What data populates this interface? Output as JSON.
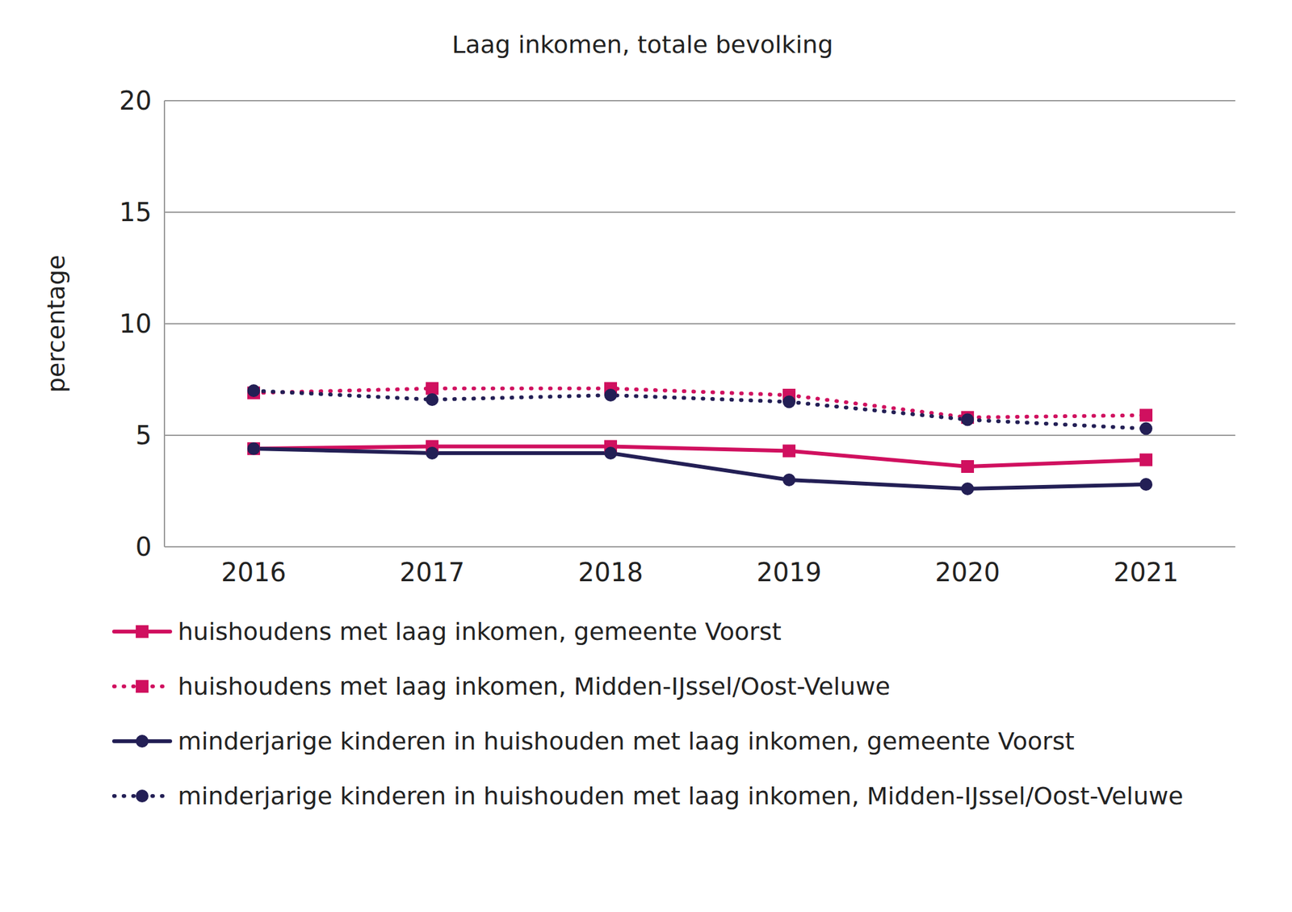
{
  "chart_data": {
    "type": "line",
    "title": "Laag inkomen, totale bevolking",
    "y_label": "percentage",
    "categories": [
      "2016",
      "2017",
      "2018",
      "2019",
      "2020",
      "2021"
    ],
    "ylim": [
      0,
      20
    ],
    "yticks": [
      0,
      5,
      10,
      15,
      20
    ],
    "grid": true,
    "series": [
      {
        "name": "huishoudens met laag inkomen, gemeente Voorst",
        "color": "#d0105f",
        "marker": "square",
        "line_style": "solid",
        "values": [
          4.4,
          4.5,
          4.5,
          4.3,
          3.6,
          3.9
        ]
      },
      {
        "name": "huishoudens met laag inkomen, Midden-IJssel/Oost-Veluwe",
        "color": "#d0105f",
        "marker": "square",
        "line_style": "dotted",
        "values": [
          6.9,
          7.1,
          7.1,
          6.8,
          5.8,
          5.9
        ]
      },
      {
        "name": "minderjarige kinderen in huishouden met laag inkomen, gemeente Voorst",
        "color": "#231f55",
        "marker": "circle",
        "line_style": "solid",
        "values": [
          4.4,
          4.2,
          4.2,
          3.0,
          2.6,
          2.8
        ]
      },
      {
        "name": "minderjarige kinderen in huishouden met laag inkomen, Midden-IJssel/Oost-Veluwe",
        "color": "#231f55",
        "marker": "circle",
        "line_style": "dotted",
        "values": [
          7.0,
          6.6,
          6.8,
          6.5,
          5.7,
          5.3
        ]
      }
    ]
  }
}
